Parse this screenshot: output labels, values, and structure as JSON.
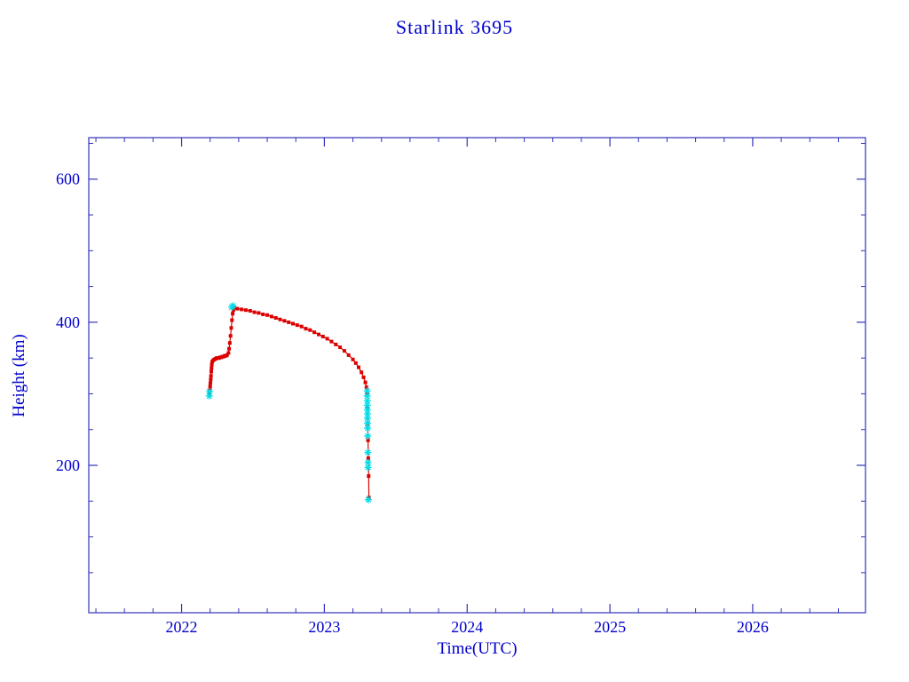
{
  "chart": {
    "title": "Starlink 3695",
    "xlabel": "Time(UTC)",
    "ylabel": "Height (km)"
  },
  "chart_data": {
    "type": "scatter",
    "title": "Starlink 3695",
    "xlabel": "Time(UTC)",
    "ylabel": "Height (km)",
    "xlim": [
      2021.35,
      2026.79
    ],
    "ylim": [
      -6,
      658
    ],
    "x_ticks": [
      2022,
      2023,
      2024,
      2025,
      2026
    ],
    "x_tick_labels": [
      "2022",
      "2023",
      "2024",
      "2025",
      "2026"
    ],
    "y_ticks": [
      200,
      400,
      600
    ],
    "y_tick_labels": [
      "200",
      "400",
      "600"
    ],
    "x_minor_step": 0.2,
    "y_minor_step": 50,
    "grid": false,
    "legend": "none",
    "axis_color": "#3333bb",
    "text_color": "#0000cd",
    "series": [
      {
        "name": "height-history-red",
        "color": "#dc0000",
        "marker": "point",
        "points": [
          [
            2022.195,
            300
          ],
          [
            2022.198,
            305
          ],
          [
            2022.2,
            310
          ],
          [
            2022.202,
            315
          ],
          [
            2022.204,
            320
          ],
          [
            2022.206,
            325
          ],
          [
            2022.208,
            331
          ],
          [
            2022.21,
            336
          ],
          [
            2022.212,
            341
          ],
          [
            2022.215,
            345
          ],
          [
            2022.222,
            347
          ],
          [
            2022.23,
            348
          ],
          [
            2022.238,
            349
          ],
          [
            2022.246,
            350
          ],
          [
            2022.254,
            350
          ],
          [
            2022.262,
            350
          ],
          [
            2022.27,
            351
          ],
          [
            2022.278,
            351
          ],
          [
            2022.286,
            352
          ],
          [
            2022.294,
            352
          ],
          [
            2022.302,
            353
          ],
          [
            2022.31,
            353
          ],
          [
            2022.318,
            354
          ],
          [
            2022.328,
            357
          ],
          [
            2022.333,
            363
          ],
          [
            2022.338,
            371
          ],
          [
            2022.343,
            381
          ],
          [
            2022.348,
            392
          ],
          [
            2022.353,
            403
          ],
          [
            2022.358,
            412
          ],
          [
            2022.363,
            417
          ],
          [
            2022.368,
            420
          ],
          [
            2022.39,
            419
          ],
          [
            2022.42,
            418
          ],
          [
            2022.45,
            417
          ],
          [
            2022.48,
            416
          ],
          [
            2022.51,
            414
          ],
          [
            2022.54,
            413
          ],
          [
            2022.57,
            411
          ],
          [
            2022.6,
            410
          ],
          [
            2022.63,
            408
          ],
          [
            2022.66,
            406
          ],
          [
            2022.69,
            404
          ],
          [
            2022.72,
            402
          ],
          [
            2022.75,
            400
          ],
          [
            2022.78,
            398
          ],
          [
            2022.81,
            396
          ],
          [
            2022.84,
            394
          ],
          [
            2022.87,
            391
          ],
          [
            2022.9,
            389
          ],
          [
            2022.93,
            386
          ],
          [
            2022.96,
            383
          ],
          [
            2022.99,
            380
          ],
          [
            2023.02,
            377
          ],
          [
            2023.05,
            373
          ],
          [
            2023.08,
            369
          ],
          [
            2023.11,
            365
          ],
          [
            2023.14,
            360
          ],
          [
            2023.17,
            354
          ],
          [
            2023.2,
            348
          ],
          [
            2023.22,
            343
          ],
          [
            2023.24,
            337
          ],
          [
            2023.26,
            330
          ],
          [
            2023.275,
            323
          ],
          [
            2023.287,
            316
          ],
          [
            2023.295,
            309
          ],
          [
            2023.3,
            300
          ],
          [
            2023.302,
            280
          ],
          [
            2023.304,
            258
          ],
          [
            2023.306,
            235
          ],
          [
            2023.308,
            210
          ],
          [
            2023.31,
            185
          ],
          [
            2023.312,
            155
          ]
        ]
      },
      {
        "name": "tle-events-cyan",
        "color": "#00dde8",
        "marker": "asterisk",
        "points": [
          [
            2022.194,
            297
          ],
          [
            2022.196,
            303
          ],
          [
            2022.352,
            421
          ],
          [
            2022.36,
            423
          ],
          [
            2023.3,
            304
          ],
          [
            2023.3,
            297
          ],
          [
            2023.301,
            290
          ],
          [
            2023.301,
            284
          ],
          [
            2023.301,
            278
          ],
          [
            2023.302,
            272
          ],
          [
            2023.302,
            266
          ],
          [
            2023.302,
            259
          ],
          [
            2023.303,
            252
          ],
          [
            2023.304,
            241
          ],
          [
            2023.305,
            218
          ],
          [
            2023.306,
            204
          ],
          [
            2023.306,
            197
          ],
          [
            2023.308,
            152
          ]
        ]
      }
    ]
  }
}
